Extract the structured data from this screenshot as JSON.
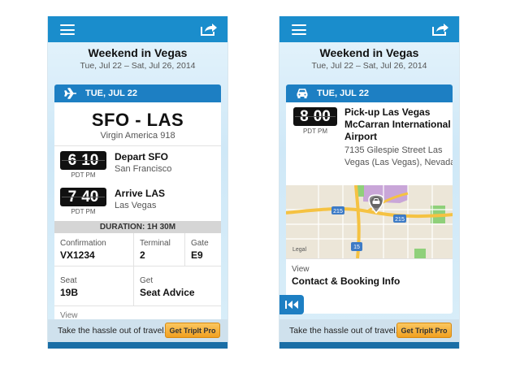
{
  "left_screen": {
    "trip_title": "Weekend in Vegas",
    "trip_dates": "Tue, Jul 22 – Sat, Jul 26, 2014",
    "day_label": "TUE, JUL 22",
    "route": "SFO - LAS",
    "airline": "Virgin America 918",
    "depart": {
      "time_h": "6",
      "time_m": "10",
      "tz": "PDT PM",
      "title": "Depart SFO",
      "place": "San Francisco"
    },
    "arrive": {
      "time_h": "7",
      "time_m": "40",
      "tz": "PDT PM",
      "title": "Arrive LAS",
      "place": "Las Vegas"
    },
    "duration": "DURATION: 1H 30M",
    "confirmation_label": "Confirmation",
    "confirmation_value": "VX1234",
    "terminal_label": "Terminal",
    "terminal_value": "2",
    "gate_label": "Gate",
    "gate_value": "E9",
    "seat_label": "Seat",
    "seat_value": "19B",
    "get_label": "Get",
    "get_value": "Seat Advice",
    "view_label": "View"
  },
  "right_screen": {
    "trip_title": "Weekend in Vegas",
    "trip_dates": "Tue, Jul 22 – Sat, Jul 26, 2014",
    "day_label": "TUE, JUL 22",
    "pickup": {
      "time_h": "8",
      "time_m": "00",
      "tz": "PDT PM",
      "title": "Pick-up Las Vegas McCarran International Airport",
      "address": "7135 Gilespie Street Las Vegas (Las Vegas), Nevada"
    },
    "map": {
      "legal": "Legal",
      "route_215a": "215",
      "route_215b": "215",
      "route_15": "15"
    },
    "view_label": "View",
    "contact_label": "Contact & Booking Info"
  },
  "promo": {
    "text": "Take the hassle out of travel.",
    "button": "Get TripIt Pro"
  },
  "colors": {
    "topbar": "#1a8dcc",
    "day_bar": "#1d7fc3",
    "promo_button": "#f0a020"
  },
  "icons": [
    "menu-icon",
    "share-icon",
    "airplane-icon",
    "car-icon",
    "map-pin-icon",
    "rewind-icon"
  ]
}
